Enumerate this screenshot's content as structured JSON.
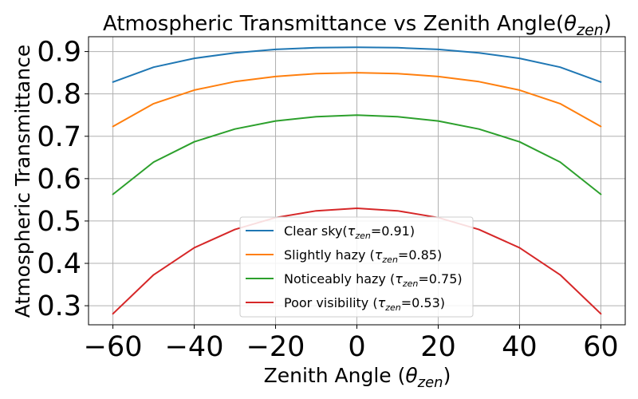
{
  "chart_data": {
    "type": "line",
    "title_prefix": "Atmospheric Transmittance vs Zenith Angle(",
    "title_symbol": "θ",
    "title_sub": "zen",
    "title_suffix": ")",
    "xlabel_prefix": "Zenith Angle (",
    "xlabel_symbol": "θ",
    "xlabel_sub": "zen",
    "xlabel_suffix": ")",
    "ylabel": "Atmospheric Transmittance",
    "xlim": [
      -66,
      66
    ],
    "ylim": [
      0.255,
      0.935
    ],
    "xticks": [
      -60,
      -40,
      -20,
      0,
      20,
      40,
      60
    ],
    "xtick_labels": [
      "−60",
      "−40",
      "−20",
      "0",
      "20",
      "40",
      "60"
    ],
    "yticks": [
      0.3,
      0.4,
      0.5,
      0.6,
      0.7,
      0.8,
      0.9
    ],
    "ytick_labels": [
      "0.3",
      "0.4",
      "0.5",
      "0.6",
      "0.7",
      "0.8",
      "0.9"
    ],
    "grid": true,
    "legend_position": "lower center",
    "x": [
      -60,
      -50,
      -40,
      -30,
      -20,
      -10,
      0,
      10,
      20,
      30,
      40,
      50,
      60
    ],
    "series": [
      {
        "name": "Clear sky(τzen=0.91)",
        "legend_prefix": "Clear sky(",
        "legend_suffix": "=0.91)",
        "color": "#1f77b4",
        "values": [
          0.828,
          0.863,
          0.884,
          0.897,
          0.905,
          0.909,
          0.91,
          0.909,
          0.905,
          0.897,
          0.884,
          0.863,
          0.828
        ]
      },
      {
        "name": "Slightly hazy (τzen=0.85)",
        "legend_prefix": "Slightly hazy (",
        "legend_suffix": "=0.85)",
        "color": "#ff7f0e",
        "values": [
          0.723,
          0.777,
          0.809,
          0.829,
          0.841,
          0.848,
          0.85,
          0.848,
          0.841,
          0.829,
          0.809,
          0.777,
          0.723
        ]
      },
      {
        "name": "Noticeably hazy (τzen=0.75)",
        "legend_prefix": "Noticeably hazy (",
        "legend_suffix": "=0.75)",
        "color": "#2ca02c",
        "values": [
          0.563,
          0.639,
          0.687,
          0.717,
          0.736,
          0.746,
          0.75,
          0.746,
          0.736,
          0.717,
          0.687,
          0.639,
          0.563
        ]
      },
      {
        "name": "Poor visibility (τzen=0.53)",
        "legend_prefix": "Poor visibility (",
        "legend_suffix": "=0.53)",
        "color": "#d62728",
        "values": [
          0.281,
          0.373,
          0.437,
          0.48,
          0.508,
          0.524,
          0.53,
          0.524,
          0.508,
          0.48,
          0.437,
          0.373,
          0.281
        ]
      }
    ],
    "legend_symbol": "τ",
    "legend_sub": "zen"
  }
}
